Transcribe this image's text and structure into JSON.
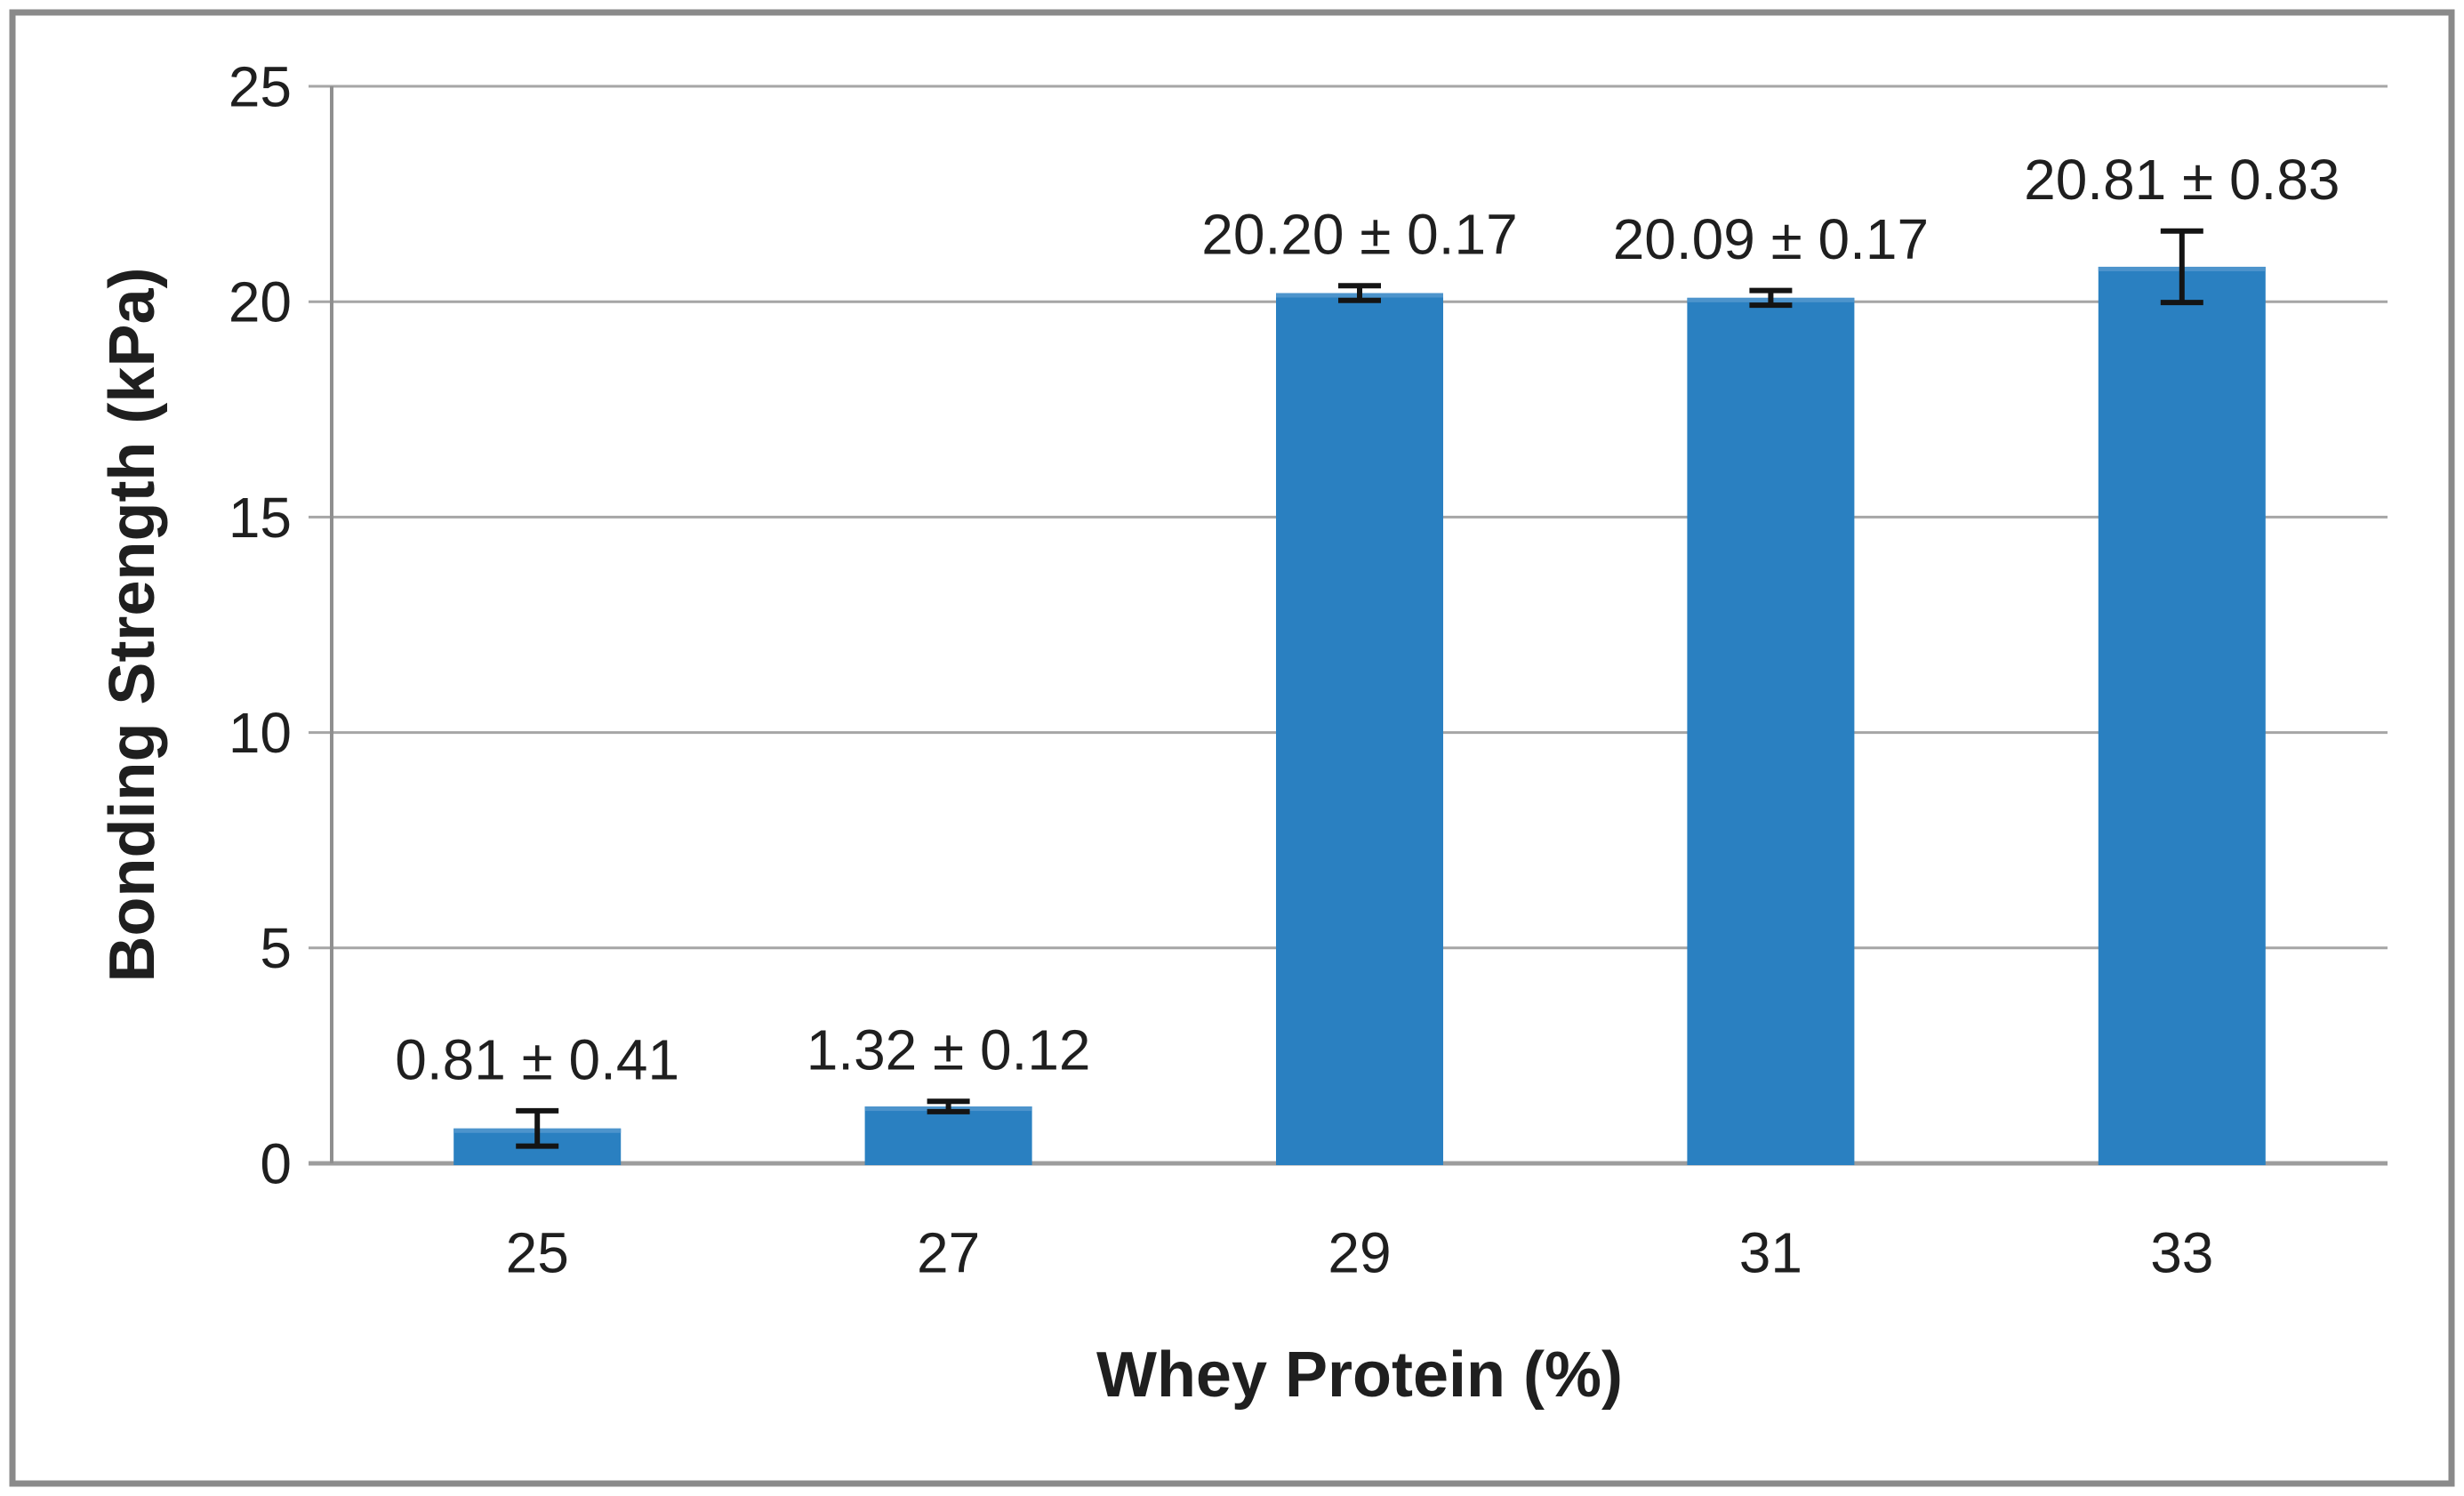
{
  "figure": {
    "background": "#FFFFFF",
    "border_color": "#8A8A8A"
  },
  "chart_data": {
    "type": "bar",
    "title": "",
    "xlabel": "Whey Protein (%)",
    "ylabel": "Bonding Strength (kPa)",
    "categories": [
      "25",
      "27",
      "29",
      "31",
      "33"
    ],
    "values": [
      0.81,
      1.32,
      20.2,
      20.09,
      20.81
    ],
    "errors": [
      0.41,
      0.12,
      0.17,
      0.17,
      0.83
    ],
    "value_labels": [
      "0.81 ± 0.41",
      "1.32 ± 0.12",
      "20.20 ± 0.17",
      "20.09 ± 0.17",
      "20.81 ± 0.83"
    ],
    "ylim": [
      0,
      25
    ],
    "yticks": [
      0,
      5,
      10,
      15,
      20,
      25
    ],
    "grid": true,
    "legend": false,
    "colors": {
      "bar": "#2A80C1",
      "bar_top_edge": "#4D94CC",
      "gridline": "#A6A6A6",
      "baseline": "#9D9D9D",
      "axis_line": "#8F8F8F",
      "error_bar": "#141414",
      "text": "#1F1F1F"
    }
  }
}
